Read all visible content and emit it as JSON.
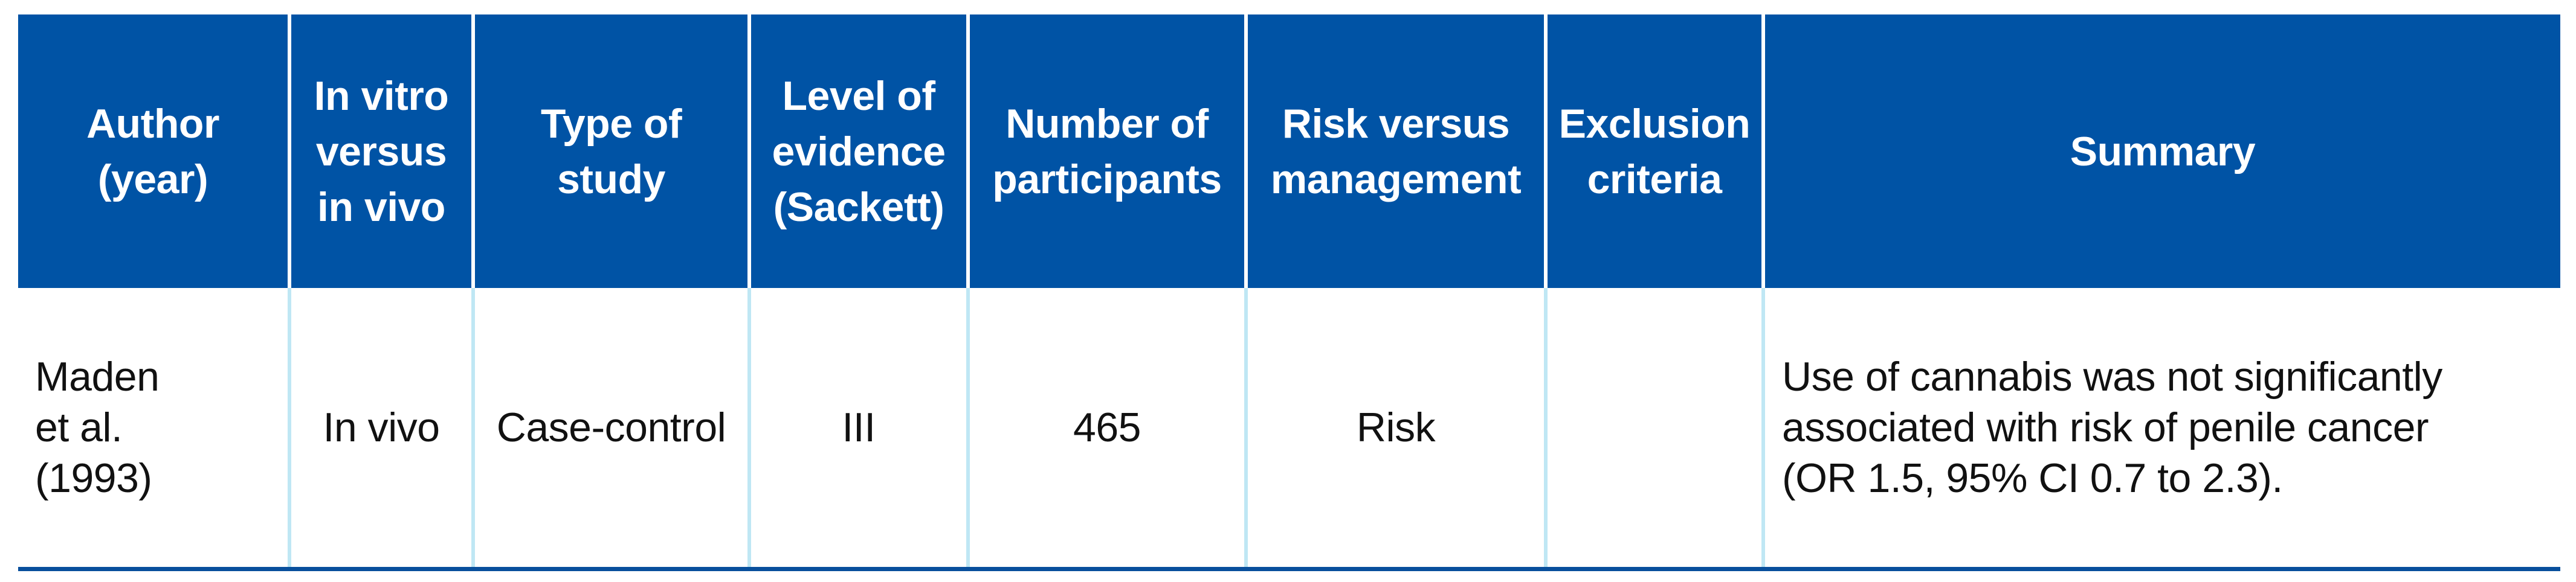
{
  "colors": {
    "header_bg": "#0053a5",
    "header_text": "#ffffff",
    "body_text": "#111111",
    "body_divider": "#bfe7f4",
    "bottom_border": "#084f9c"
  },
  "table": {
    "columns": [
      {
        "id": "author-year",
        "label": "Author\n(year)"
      },
      {
        "id": "in-vitro-vs-in-vivo",
        "label": "In vitro\nversus\nin vivo"
      },
      {
        "id": "type-of-study",
        "label": "Type of\nstudy"
      },
      {
        "id": "level-of-evidence",
        "label": "Level of\nevidence\n(Sackett)"
      },
      {
        "id": "number-of-participants",
        "label": "Number of\nparticipants"
      },
      {
        "id": "risk-versus-management",
        "label": "Risk versus\nmanagement"
      },
      {
        "id": "exclusion-criteria",
        "label": "Exclusion\ncriteria"
      },
      {
        "id": "summary",
        "label": "Summary"
      }
    ],
    "rows": [
      {
        "author_year": "Maden\net al.\n(1993)",
        "in_vitro_vs_in_vivo": "In vivo",
        "type_of_study": "Case-control",
        "level_of_evidence": "III",
        "number_of_participants": "465",
        "risk_versus_management": "Risk",
        "exclusion_criteria": "",
        "summary": "Use of cannabis was not significantly\nassociated with risk of penile cancer\n(OR 1.5, 95% CI 0.7 to 2.3)."
      }
    ]
  }
}
